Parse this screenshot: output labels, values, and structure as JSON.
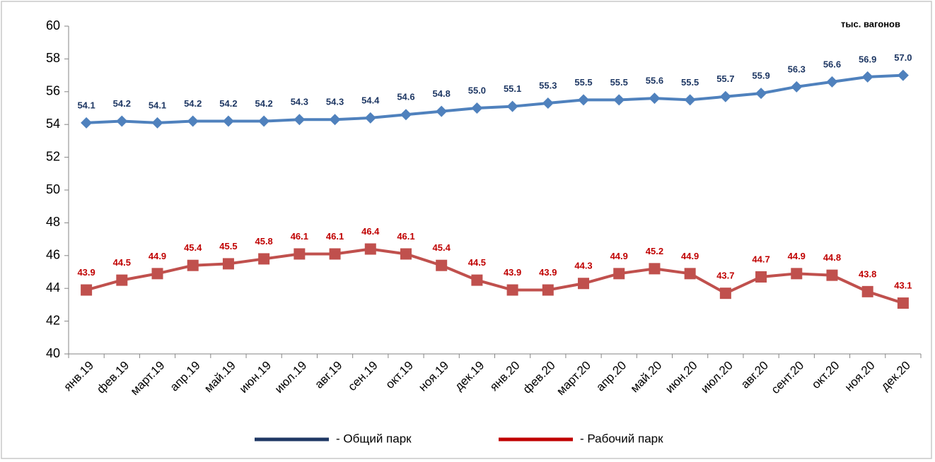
{
  "chart_data": {
    "type": "line",
    "annotation": "тыс. вагонов",
    "categories": [
      "янв.19",
      "фев.19",
      "март.19",
      "апр.19",
      "май.19",
      "июн.19",
      "июл.19",
      "авг.19",
      "сен.19",
      "окт.19",
      "ноя.19",
      "дек.19",
      "янв.20",
      "фев.20",
      "март.20",
      "апр.20",
      "май.20",
      "июн.20",
      "июл.20",
      "авг.20",
      "сент.20",
      "окт.20",
      "ноя.20",
      "дек.20"
    ],
    "series": [
      {
        "name": "- Общий парк",
        "color": "#4f81bd",
        "marker": "diamond",
        "label_color": "#1f3864",
        "legend_color": "#1f3864",
        "values": [
          54.1,
          54.2,
          54.1,
          54.2,
          54.2,
          54.2,
          54.3,
          54.3,
          54.4,
          54.6,
          54.8,
          55.0,
          55.1,
          55.3,
          55.5,
          55.5,
          55.6,
          55.5,
          55.7,
          55.9,
          56.3,
          56.6,
          56.9,
          57.0
        ],
        "value_labels": [
          "54.1",
          "54.2",
          "54.1",
          "54.2",
          "54.2",
          "54.2",
          "54.3",
          "54.3",
          "54.4",
          "54.6",
          "54.8",
          "55.0",
          "55.1",
          "55.3",
          "55.5",
          "55.5",
          "55.6",
          "55.5",
          "55.7",
          "55.9",
          "56.3",
          "56.6",
          "56.9",
          "57.0"
        ]
      },
      {
        "name": "- Рабочий парк",
        "color": "#c0504d",
        "marker": "square",
        "label_color": "#c00000",
        "legend_color": "#c00000",
        "values": [
          43.9,
          44.5,
          44.9,
          45.4,
          45.5,
          45.8,
          46.1,
          46.1,
          46.4,
          46.1,
          45.4,
          44.5,
          43.9,
          43.9,
          44.3,
          44.9,
          45.2,
          44.9,
          43.7,
          44.7,
          44.9,
          44.8,
          43.8,
          43.1
        ],
        "value_labels": [
          "43.9",
          "44.5",
          "44.9",
          "45.4",
          "45.5",
          "45.8",
          "46.1",
          "46.1",
          "46.4",
          "46.1",
          "45.4",
          "44.5",
          "43.9",
          "43.9",
          "44.3",
          "44.9",
          "45.2",
          "44.9",
          "43.7",
          "44.7",
          "44.9",
          "44.8",
          "43.8",
          "43.1"
        ]
      }
    ],
    "ylim": [
      40,
      60
    ],
    "yticks": [
      40,
      42,
      44,
      46,
      48,
      50,
      52,
      54,
      56,
      58,
      60
    ]
  }
}
